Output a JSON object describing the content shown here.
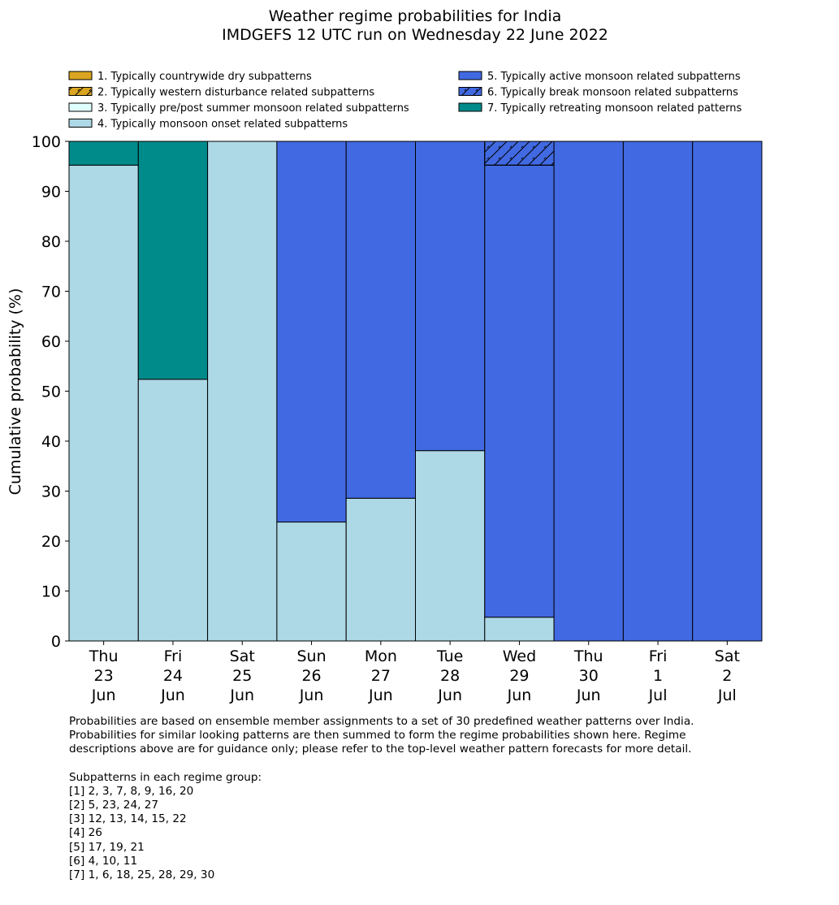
{
  "chart_data": {
    "type": "bar",
    "stacked": true,
    "title": "Weather regime probabilities for India",
    "subtitle": "IMDGEFS 12 UTC run on Wednesday 22 June 2022",
    "ylabel": "Cumulative probability (%)",
    "ylim": [
      0,
      100
    ],
    "yticks": [
      0,
      10,
      20,
      30,
      40,
      50,
      60,
      70,
      80,
      90,
      100
    ],
    "categories": [
      [
        "Thu",
        "23",
        "Jun"
      ],
      [
        "Fri",
        "24",
        "Jun"
      ],
      [
        "Sat",
        "25",
        "Jun"
      ],
      [
        "Sun",
        "26",
        "Jun"
      ],
      [
        "Mon",
        "27",
        "Jun"
      ],
      [
        "Tue",
        "28",
        "Jun"
      ],
      [
        "Wed",
        "29",
        "Jun"
      ],
      [
        "Thu",
        "30",
        "Jun"
      ],
      [
        "Fri",
        "1",
        "Jul"
      ],
      [
        "Sat",
        "2",
        "Jul"
      ]
    ],
    "legend_placement": "top",
    "series": [
      {
        "name": "1. Typically countrywide dry subpatterns",
        "color": "#DAA520",
        "hatch": false,
        "values": [
          0,
          0,
          0,
          0,
          0,
          0,
          0,
          0,
          0,
          0
        ]
      },
      {
        "name": "2. Typically western disturbance related subpatterns",
        "color": "#DAA520",
        "hatch": true,
        "values": [
          0,
          0,
          0,
          0,
          0,
          0,
          0,
          0,
          0,
          0
        ]
      },
      {
        "name": "3. Typically pre/post summer monsoon related subpatterns",
        "color": "#E0FFFF",
        "hatch": false,
        "values": [
          0,
          0,
          0,
          0,
          0,
          0,
          0,
          0,
          0,
          0
        ]
      },
      {
        "name": "4. Typically monsoon onset related subpatterns",
        "color": "#ADD8E6",
        "hatch": false,
        "values": [
          95.24,
          52.38,
          100,
          23.81,
          28.57,
          38.1,
          4.76,
          0,
          0,
          0
        ]
      },
      {
        "name": "5. Typically active monsoon related subpatterns",
        "color": "#4169E1",
        "hatch": false,
        "values": [
          0,
          0,
          0,
          76.19,
          71.43,
          61.9,
          90.48,
          100,
          100,
          100
        ]
      },
      {
        "name": "6. Typically break monsoon related subpatterns",
        "color": "#4169E1",
        "hatch": true,
        "values": [
          0,
          0,
          0,
          0,
          0,
          0,
          4.76,
          0,
          0,
          0
        ]
      },
      {
        "name": "7. Typically retreating monsoon related patterns",
        "color": "#008B8B",
        "hatch": false,
        "values": [
          4.76,
          47.62,
          0,
          0,
          0,
          0,
          0,
          0,
          0,
          0
        ]
      }
    ]
  },
  "notes": {
    "paragraph": "Probabilities are based on ensemble member assignments to a set of 30 predefined weather patterns over India.\nProbabilities for similar looking patterns are then summed to form the regime probabilities shown here. Regime\ndescriptions above are for guidance only; please refer to the top-level weather pattern forecasts for more detail.",
    "groups_title": "Subpatterns in each regime group:",
    "groups": [
      "[1] 2, 3, 7, 8, 9, 16, 20",
      "[2] 5, 23, 24, 27",
      "[3] 12, 13, 14, 15, 22",
      "[4] 26",
      "[5] 17, 19, 21",
      "[6] 4, 10, 11",
      "[7] 1, 6, 18, 25, 28, 29, 30"
    ]
  }
}
